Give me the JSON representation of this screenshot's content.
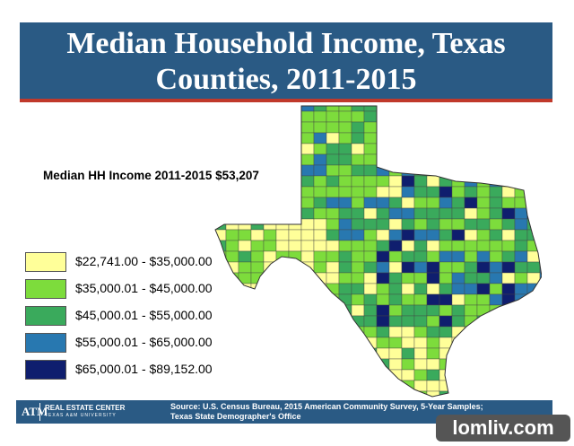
{
  "title": {
    "line1": "Median Household Income, Texas",
    "line2": "Counties, 2011-2015"
  },
  "median_label": "Median HH Income 2011-2015 $53,207",
  "legend": [
    {
      "label": "$22,741.00 - $35,000.00",
      "color": "#ffff99"
    },
    {
      "label": "$35,000.01 - $45,000.00",
      "color": "#7ddc3c"
    },
    {
      "label": "$45,000.01 - $55,000.00",
      "color": "#3aaa5c"
    },
    {
      "label": "$55,000.01 - $65,000.00",
      "color": "#2878b0"
    },
    {
      "label": "$65,000.01 - $89,152.00",
      "color": "#0f1e6e"
    }
  ],
  "footer": {
    "logo_mark": "ATM",
    "logo_name": "REAL ESTATE CENTER",
    "logo_sub": "TEXAS A&M UNIVERSITY",
    "source_line1": "Source: U.S. Census  Bureau, 2015 American Community Survey, 5-Year Samples;",
    "source_line2": "Texas State Demographer's Office"
  },
  "watermark": "lomliv.com"
}
